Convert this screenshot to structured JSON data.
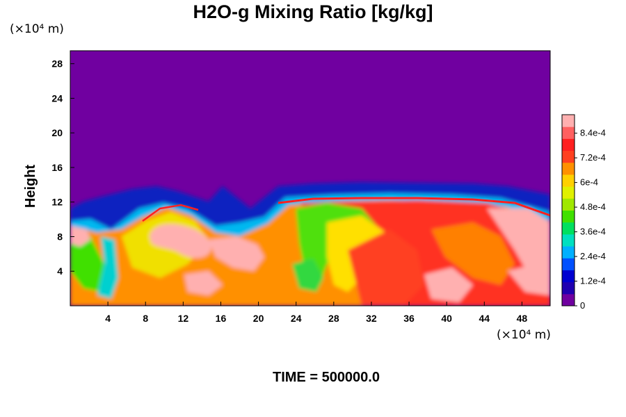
{
  "chart_data": {
    "type": "heatmap",
    "title": "H2O-g Mixing Ratio [kg/kg]",
    "ylabel": "Height",
    "xlabel": "",
    "x_unit": "(×10⁴ m)",
    "y_unit": "(×10⁴ m)",
    "x_ticks": [
      4,
      8,
      12,
      16,
      20,
      24,
      28,
      32,
      36,
      40,
      44,
      48
    ],
    "y_ticks": [
      4,
      8,
      12,
      16,
      20,
      24,
      28
    ],
    "xlim": [
      0,
      51
    ],
    "ylim": [
      0,
      29.5
    ],
    "colorbar": {
      "min": 0,
      "max": 0.00093,
      "ticks": [
        {
          "value": 0,
          "label": "0"
        },
        {
          "value": 0.00012,
          "label": "1.2e-4"
        },
        {
          "value": 0.00024,
          "label": "2.4e-4"
        },
        {
          "value": 0.00036,
          "label": "3.6e-4"
        },
        {
          "value": 0.00048,
          "label": "4.8e-4"
        },
        {
          "value": 0.0006,
          "label": "6e-4"
        },
        {
          "value": 0.00072,
          "label": "7.2e-4"
        },
        {
          "value": 0.00084,
          "label": "8.4e-4"
        }
      ],
      "colors": [
        "#7000a0",
        "#2000b0",
        "#0000d0",
        "#0050ff",
        "#00b0ff",
        "#00e0c0",
        "#00e060",
        "#40e000",
        "#a0e800",
        "#e0f000",
        "#ffd000",
        "#ff9000",
        "#ff4020",
        "#ff2020",
        "#ff6060",
        "#ffb0b0"
      ]
    },
    "background_color": "#7000a0",
    "time_label": "TIME = 500000.0"
  }
}
